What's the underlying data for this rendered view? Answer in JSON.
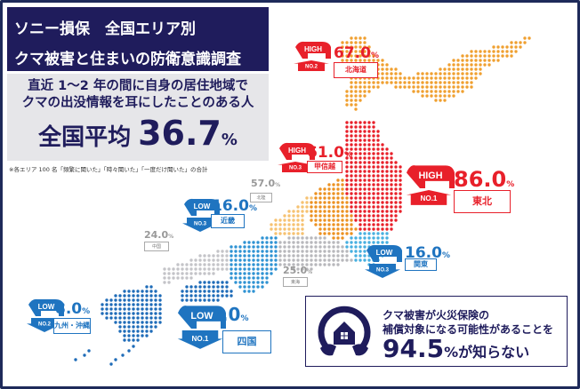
{
  "title": {
    "line1": "ソニー損保　全国エリア別",
    "line2": "クマ被害と住まいの防衛意識調査"
  },
  "question": {
    "line1": "直近 1～2 年の間に自身の居住地域で",
    "line2": "クマの出没情報を耳にしたことのある人",
    "avg_label": "全国平均",
    "avg_value": "36.7",
    "unit": "%"
  },
  "footnote": "※各エリア 100 名「頻繁に聞いた」「時々聞いた」「一度だけ聞いた」の合計",
  "regions": [
    {
      "name": "北海道",
      "value": "67.0",
      "tag": "HIGH",
      "rank": "NO.2",
      "color": "#f0a030"
    },
    {
      "name": "東北",
      "value": "86.0",
      "tag": "HIGH",
      "rank": "NO.1",
      "color": "#e8202a"
    },
    {
      "name": "甲信越",
      "value": "61.0",
      "tag": "HIGH",
      "rank": "NO.3",
      "color": "#ec9222"
    },
    {
      "name": "北陸",
      "value": "57.0",
      "color": "#f6c272"
    },
    {
      "name": "関東",
      "value": "16.0",
      "tag": "LOW",
      "rank": "NO.3",
      "color": "#48b0e0"
    },
    {
      "name": "東海",
      "value": "25.0",
      "color": "#b8b8bc"
    },
    {
      "name": "近畿",
      "value": "16.0",
      "tag": "LOW",
      "rank": "NO.3",
      "color": "#2f93d3"
    },
    {
      "name": "中国",
      "value": "24.0",
      "color": "#c4c4c8"
    },
    {
      "name": "四国",
      "value": "7.0",
      "tag": "LOW",
      "rank": "NO.1",
      "color": "#1f6cb8"
    },
    {
      "name": "九州・沖縄",
      "value": "8.0",
      "tag": "LOW",
      "rank": "NO.2",
      "color": "#1f6cb8"
    }
  ],
  "unit": "%",
  "high_color": "#e8202a",
  "low_color": "#1f74c0",
  "callout": {
    "line1": "クマ被害が火災保険の",
    "line2": "補償対象になる可能性があることを",
    "value": "94.5",
    "unit": "%",
    "suffix": "が知らない",
    "icon": "house-hands-icon"
  }
}
